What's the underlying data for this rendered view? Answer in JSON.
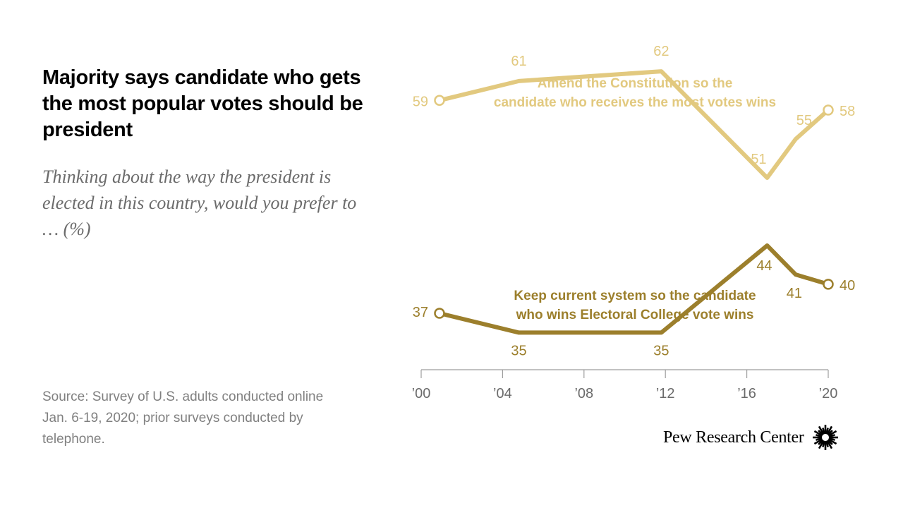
{
  "header": {
    "title": "Majority says candidate who gets the most popular votes should be president",
    "subtitle": "Thinking about the way the president is elected in this country, would you prefer to … (%)"
  },
  "footer": {
    "source": "Source: Survey of U.S. adults conducted online Jan. 6-19, 2020; prior surveys conducted by telephone.",
    "brand": "Pew Research Center"
  },
  "chart_data": {
    "type": "line",
    "x_ticks": [
      "’00",
      "’04",
      "’08",
      "’12",
      "’16",
      "’20"
    ],
    "x_tick_values": [
      2000,
      2004,
      2008,
      2012,
      2016,
      2020
    ],
    "xlim": [
      2000,
      2020
    ],
    "ylim": [
      30,
      65
    ],
    "grid": false,
    "series": [
      {
        "name_lines": [
          "Amend the Constitution so the",
          "candidate who receives the most votes wins"
        ],
        "color": "#e2c97f",
        "x": [
          2000.9,
          2004.8,
          2011.8,
          2017.0,
          2018.4,
          2020.0
        ],
        "values": [
          59,
          61,
          62,
          51,
          55,
          58
        ],
        "labels": [
          "59",
          "61",
          "62",
          "51",
          "55",
          "58"
        ]
      },
      {
        "name_lines": [
          "Keep current system so the candidate",
          "who wins Electoral College vote wins"
        ],
        "color": "#9c7f2c",
        "x": [
          2000.9,
          2004.8,
          2011.8,
          2017.0,
          2018.4,
          2020.0
        ],
        "values": [
          37,
          35,
          35,
          44,
          41,
          40
        ],
        "labels": [
          "37",
          "35",
          "35",
          "44",
          "41",
          "40"
        ]
      }
    ]
  }
}
